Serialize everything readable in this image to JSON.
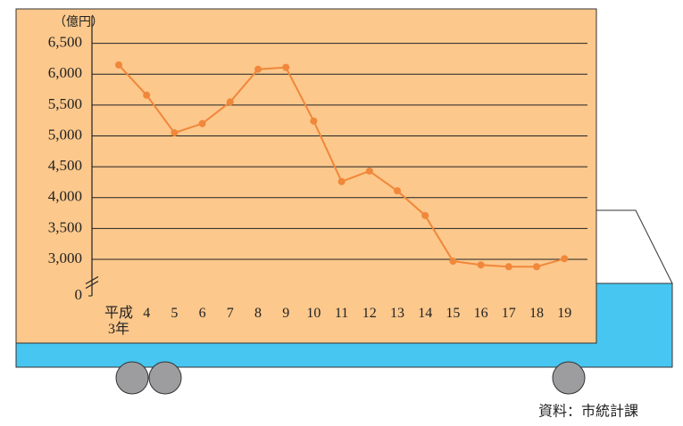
{
  "chart_data": {
    "type": "line",
    "y_unit": "（億円）",
    "source": "資料：市統計課",
    "categories": [
      "平成\n3年",
      "4",
      "5",
      "6",
      "7",
      "8",
      "9",
      "10",
      "11",
      "12",
      "13",
      "14",
      "15",
      "16",
      "17",
      "18",
      "19"
    ],
    "series": [
      {
        "color": "#f0873a",
        "values": [
          6150,
          5660,
          5050,
          5200,
          5550,
          6080,
          6110,
          5240,
          4260,
          4430,
          4110,
          3710,
          2970,
          2910,
          2880,
          2880,
          3010
        ]
      }
    ],
    "ylim": [
      0,
      7000
    ],
    "ybreak": [
      0,
      3000
    ],
    "yticks": [
      0,
      {
        "value": 3000,
        "label": "3,000"
      },
      {
        "value": 3500,
        "label": "3,500"
      },
      {
        "value": 4000,
        "label": "4,000"
      },
      {
        "value": 4500,
        "label": "4,500"
      },
      {
        "value": 5000,
        "label": "5,000"
      },
      {
        "value": 5500,
        "label": "5,500"
      },
      {
        "value": 6000,
        "label": "6,000"
      },
      {
        "value": 6500,
        "label": "6,500"
      }
    ],
    "grid": true
  }
}
